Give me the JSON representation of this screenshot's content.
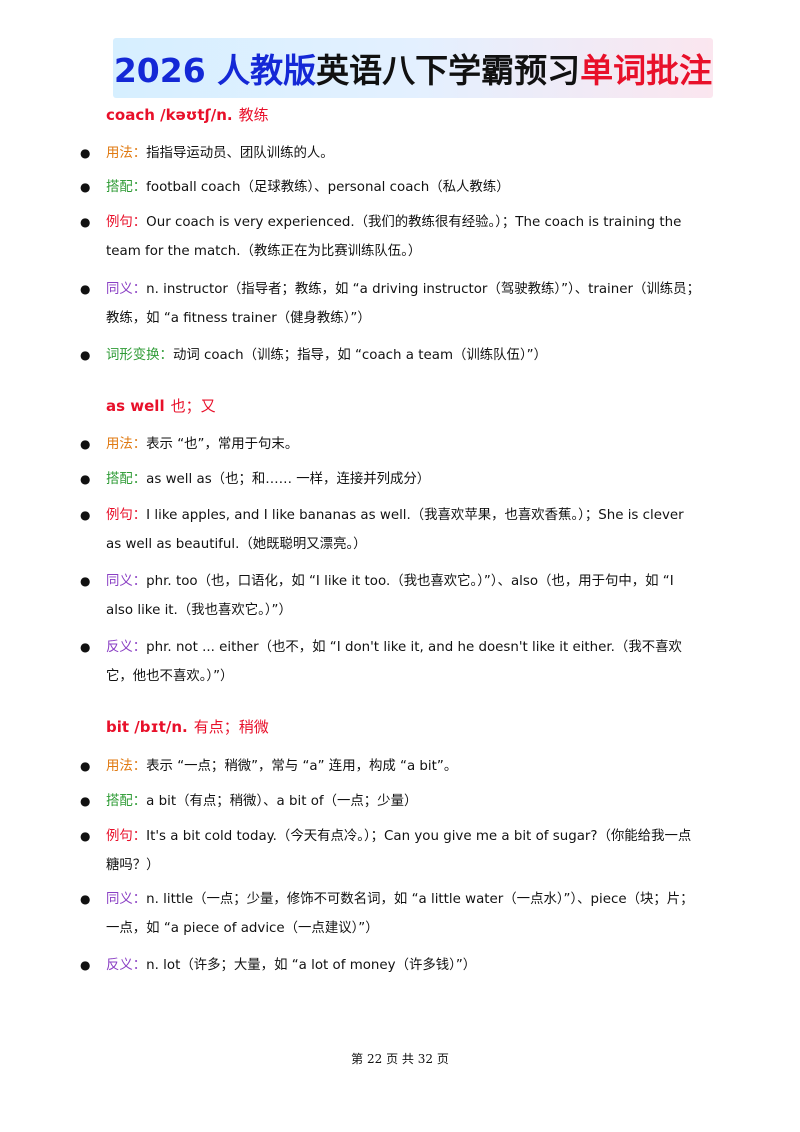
{
  "banner": {
    "part1": "2026 人教版",
    "part2": "英语八下学霸预习",
    "part3": "单词批注"
  },
  "entries": [
    {
      "word": "coach /kəʊtʃ/n.",
      "meaning": "教练",
      "items": [
        {
          "label": "用法：",
          "text": "指指导运动员、团队训练的人。"
        },
        {
          "label": "搭配：",
          "text": "football coach（足球教练）、personal coach（私人教练）"
        },
        {
          "label": "例句：",
          "text": "Our coach is very experienced.（我们的教练很有经验。）；The coach is training the team for the match.（教练正在为比赛训练队伍。）"
        },
        {
          "label": "同义：",
          "text": "n. instructor（指导者；教练，如 “a driving instructor（驾驶教练）”）、trainer（训练员；教练，如 “a fitness trainer（健身教练）”）"
        },
        {
          "label": "词形变换：",
          "text": "动词 coach（训练；指导，如 “coach a team（训练队伍）”）"
        }
      ]
    },
    {
      "word": "as well",
      "meaning": "也；又",
      "items": [
        {
          "label": "用法：",
          "text": "表示 “也”，常用于句末。"
        },
        {
          "label": "搭配：",
          "text": "as well as（也；和…… 一样，连接并列成分）"
        },
        {
          "label": "例句：",
          "text": "I like apples, and I like bananas as well.（我喜欢苹果，也喜欢香蕉。）；She is clever as well as beautiful.（她既聪明又漂亮。）"
        },
        {
          "label": "同义：",
          "text": "phr. too（也，口语化，如 “I like it too.（我也喜欢它。）”）、also（也，用于句中，如 “I also like it.（我也喜欢它。）”）"
        },
        {
          "label": "反义：",
          "text": "phr. not ... either（也不，如 “I don't like it, and he doesn't like it either.（我不喜欢它，他也不喜欢。）”）"
        }
      ]
    },
    {
      "word": "bit /bɪt/n.",
      "meaning": "有点；稍微",
      "items": [
        {
          "label": "用法：",
          "text": "表示 “一点；稍微”，常与 “a” 连用，构成 “a bit”。"
        },
        {
          "label": "搭配：",
          "text": "a bit（有点；稍微）、a bit of（一点；少量）"
        },
        {
          "label": "例句：",
          "text": "It's a bit cold today.（今天有点冷。）；Can you give me a bit of sugar?（你能给我一点糖吗？）"
        },
        {
          "label": "同义：",
          "text": "n. little（一点；少量，修饰不可数名词，如 “a little water（一点水）”）、piece（块；片；一点，如 “a piece of advice（一点建议）”）"
        },
        {
          "label": "反义：",
          "text": "n. lot（许多；大量，如 “a lot of money（许多钱）”）"
        }
      ]
    }
  ],
  "footer": {
    "pre": "第",
    "page": "22",
    "mid": "页 共",
    "total": "32",
    "post": "页"
  }
}
